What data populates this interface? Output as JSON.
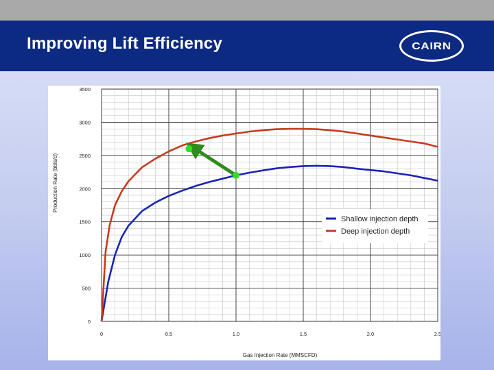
{
  "header": {
    "title": "Improving Lift Efficiency",
    "logo_text": "CAIRN",
    "bar_color": "#0d2a82"
  },
  "chart_data": {
    "type": "line",
    "xlabel": "Gas Injection Rate (MMSCFD)",
    "ylabel": "Production Rate (bbls/d)",
    "xlim": [
      0,
      2.5
    ],
    "ylim": [
      0,
      3500
    ],
    "x_ticks": [
      "0",
      "0.5",
      "1.0",
      "1.5",
      "2.0",
      "2.5"
    ],
    "y_ticks": [
      "0",
      "500",
      "1000",
      "1500",
      "2000",
      "2500",
      "3000",
      "3500"
    ],
    "grid": true,
    "legend_position": "right",
    "series": [
      {
        "name": "Shallow injection depth",
        "color": "#1a23b8",
        "x": [
          0,
          0.05,
          0.1,
          0.15,
          0.2,
          0.3,
          0.4,
          0.5,
          0.6,
          0.7,
          0.8,
          0.9,
          1.0,
          1.1,
          1.2,
          1.3,
          1.4,
          1.5,
          1.6,
          1.7,
          1.8,
          1.9,
          2.0,
          2.1,
          2.2,
          2.3,
          2.4,
          2.5
        ],
        "y": [
          0,
          600,
          1000,
          1270,
          1440,
          1660,
          1790,
          1890,
          1970,
          2040,
          2100,
          2150,
          2200,
          2240,
          2275,
          2305,
          2325,
          2340,
          2345,
          2340,
          2325,
          2300,
          2280,
          2260,
          2230,
          2200,
          2160,
          2120
        ]
      },
      {
        "name": "Deep injection depth",
        "color": "#c83a1e",
        "x": [
          0,
          0.03,
          0.06,
          0.1,
          0.15,
          0.2,
          0.3,
          0.4,
          0.5,
          0.6,
          0.7,
          0.8,
          0.9,
          1.0,
          1.1,
          1.2,
          1.3,
          1.4,
          1.5,
          1.6,
          1.7,
          1.8,
          1.9,
          2.0,
          2.1,
          2.2,
          2.3,
          2.4,
          2.5
        ],
        "y": [
          0,
          1050,
          1450,
          1750,
          1960,
          2110,
          2320,
          2450,
          2560,
          2650,
          2710,
          2760,
          2800,
          2830,
          2860,
          2880,
          2895,
          2900,
          2900,
          2895,
          2880,
          2860,
          2830,
          2800,
          2770,
          2740,
          2710,
          2680,
          2630
        ]
      }
    ],
    "annotations": [
      {
        "type": "arrow",
        "color": "#2e8b1e",
        "from": [
          1.0,
          2200
        ],
        "to": [
          0.68,
          2620
        ]
      },
      {
        "type": "point",
        "color": "#33dd22",
        "x": 1.0,
        "y": 2200
      },
      {
        "type": "point",
        "color": "#33dd22",
        "x": 0.65,
        "y": 2600
      }
    ]
  }
}
